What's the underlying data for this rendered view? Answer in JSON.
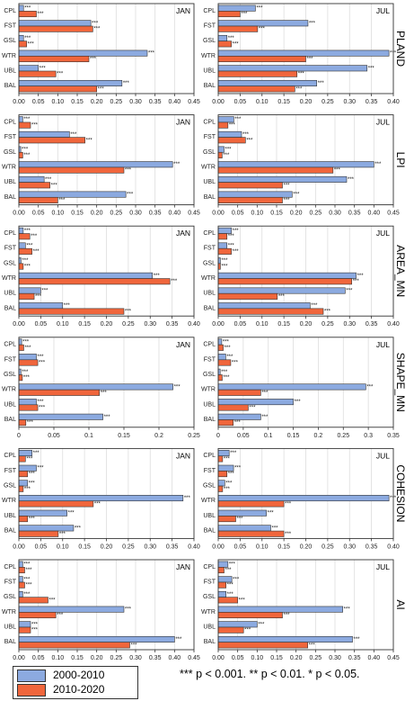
{
  "chart_data": {
    "type": "bar",
    "orientation": "horizontal",
    "categories": [
      "CPL",
      "FST",
      "GSL",
      "WTR",
      "UBL",
      "BAL"
    ],
    "series_names": [
      "2000-2010",
      "2010-2020"
    ],
    "colors": {
      "2000-2010": "#8caae0",
      "2010-2020": "#f0663c"
    },
    "significance_marker": "***",
    "grid": true,
    "rows": [
      {
        "metric": "PLAND",
        "panels": [
          {
            "month": "JAN",
            "xlim": [
              0,
              0.45
            ],
            "ticks": [
              "0.00",
              "0.05",
              "0.10",
              "0.15",
              "0.20",
              "0.25",
              "0.30",
              "0.35",
              "0.40",
              "0.45"
            ],
            "series": [
              {
                "name": "2000-2010",
                "values": [
                  0.012,
                  0.185,
                  0.012,
                  0.33,
                  0.05,
                  0.265
                ]
              },
              {
                "name": "2010-2020",
                "values": [
                  0.045,
                  0.19,
                  0.02,
                  0.18,
                  0.095,
                  0.2
                ]
              }
            ]
          },
          {
            "month": "JUL",
            "xlim": [
              0,
              0.4
            ],
            "ticks": [
              "0.00",
              "0.05",
              "0.10",
              "0.15",
              "0.20",
              "0.25",
              "0.30",
              "0.35",
              "0.40"
            ],
            "series": [
              {
                "name": "2000-2010",
                "values": [
                  0.085,
                  0.205,
                  0.02,
                  0.39,
                  0.34,
                  0.225
                ]
              },
              {
                "name": "2010-2020",
                "values": [
                  0.05,
                  0.09,
                  0.03,
                  0.2,
                  0.18,
                  0.175
                ]
              }
            ]
          }
        ]
      },
      {
        "metric": "LPI",
        "panels": [
          {
            "month": "JAN",
            "xlim": [
              0,
              0.45
            ],
            "ticks": [
              "0.00",
              "0.05",
              "0.10",
              "0.15",
              "0.20",
              "0.25",
              "0.30",
              "0.35",
              "0.40",
              "0.45"
            ],
            "series": [
              {
                "name": "2000-2010",
                "values": [
                  0.01,
                  0.13,
                  0.005,
                  0.395,
                  0.065,
                  0.275
                ]
              },
              {
                "name": "2010-2020",
                "values": [
                  0.03,
                  0.17,
                  0.01,
                  0.27,
                  0.08,
                  0.1
                ]
              }
            ]
          },
          {
            "month": "JUL",
            "xlim": [
              0,
              0.45
            ],
            "ticks": [
              "0.00",
              "0.05",
              "0.10",
              "0.15",
              "0.20",
              "0.25",
              "0.30",
              "0.35",
              "0.40",
              "0.45"
            ],
            "series": [
              {
                "name": "2000-2010",
                "values": [
                  0.04,
                  0.06,
                  0.015,
                  0.4,
                  0.33,
                  0.19
                ]
              },
              {
                "name": "2010-2020",
                "values": [
                  0.025,
                  0.07,
                  0.01,
                  0.295,
                  0.165,
                  0.165
                ]
              }
            ]
          }
        ]
      },
      {
        "metric": "AREA_MN",
        "panels": [
          {
            "month": "JAN",
            "xlim": [
              0,
              0.4
            ],
            "ticks": [
              "0.00",
              "0.05",
              "0.10",
              "0.15",
              "0.20",
              "0.25",
              "0.30",
              "0.35",
              "0.40"
            ],
            "series": [
              {
                "name": "2000-2010",
                "values": [
                  0.01,
                  0.015,
                  0.005,
                  0.305,
                  0.05,
                  0.1
                ]
              },
              {
                "name": "2010-2020",
                "values": [
                  0.025,
                  0.03,
                  0.01,
                  0.345,
                  0.035,
                  0.24
                ]
              }
            ]
          },
          {
            "month": "JUL",
            "xlim": [
              0,
              0.4
            ],
            "ticks": [
              "0.00",
              "0.05",
              "0.10",
              "0.15",
              "0.20",
              "0.25",
              "0.30",
              "0.35",
              "0.40"
            ],
            "series": [
              {
                "name": "2000-2010",
                "values": [
                  0.03,
                  0.02,
                  0.005,
                  0.315,
                  0.29,
                  0.21
                ]
              },
              {
                "name": "2010-2020",
                "values": [
                  0.02,
                  0.03,
                  0.005,
                  0.305,
                  0.135,
                  0.24
                ]
              }
            ]
          }
        ]
      },
      {
        "metric": "SHAPE_MN",
        "panels": [
          {
            "month": "JAN",
            "xlim": [
              0,
              0.25
            ],
            "ticks": [
              "0",
              "0.05",
              "0.1",
              "0.15",
              "0.2",
              "0.25"
            ],
            "series": [
              {
                "name": "2000-2010",
                "values": [
                  0.004,
                  0.025,
                  0.003,
                  0.22,
                  0.025,
                  0.12
                ]
              },
              {
                "name": "2010-2020",
                "values": [
                  0.007,
                  0.027,
                  0.005,
                  0.115,
                  0.027,
                  0.01
                ]
              }
            ]
          },
          {
            "month": "JUL",
            "xlim": [
              0,
              0.35
            ],
            "ticks": [
              "0",
              "0.05",
              "0.1",
              "0.15",
              "0.2",
              "0.25",
              "0.3",
              "0.35"
            ],
            "series": [
              {
                "name": "2000-2010",
                "values": [
                  0.007,
                  0.015,
                  0.004,
                  0.295,
                  0.15,
                  0.085
                ]
              },
              {
                "name": "2010-2020",
                "values": [
                  0.01,
                  0.025,
                  0.008,
                  0.085,
                  0.06,
                  0.03
                ]
              }
            ]
          }
        ]
      },
      {
        "metric": "COHESION",
        "panels": [
          {
            "month": "JAN",
            "xlim": [
              0,
              0.4
            ],
            "ticks": [
              "0.00",
              "0.05",
              "0.10",
              "0.15",
              "0.20",
              "0.25",
              "0.30",
              "0.35",
              "0.40"
            ],
            "series": [
              {
                "name": "2000-2010",
                "values": [
                  0.03,
                  0.04,
                  0.02,
                  0.375,
                  0.11,
                  0.125
                ]
              },
              {
                "name": "2010-2020",
                "values": [
                  0.015,
                  0.02,
                  0.01,
                  0.17,
                  0.02,
                  0.09
                ]
              }
            ]
          },
          {
            "month": "JUL",
            "xlim": [
              0,
              0.4
            ],
            "ticks": [
              "0.00",
              "0.05",
              "0.10",
              "0.15",
              "0.20",
              "0.25",
              "0.30",
              "0.35",
              "0.40"
            ],
            "series": [
              {
                "name": "2000-2010",
                "values": [
                  0.025,
                  0.035,
                  0.015,
                  0.39,
                  0.11,
                  0.12
                ]
              },
              {
                "name": "2010-2020",
                "values": [
                  0.01,
                  0.02,
                  0.01,
                  0.15,
                  0.04,
                  0.15
                ]
              }
            ]
          }
        ]
      },
      {
        "metric": "AI",
        "panels": [
          {
            "month": "JAN",
            "xlim": [
              0,
              0.45
            ],
            "ticks": [
              "0.00",
              "0.05",
              "0.10",
              "0.15",
              "0.20",
              "0.25",
              "0.30",
              "0.35",
              "0.40",
              "0.45"
            ],
            "series": [
              {
                "name": "2000-2010",
                "values": [
                  0.01,
                  0.01,
                  0.01,
                  0.27,
                  0.03,
                  0.4
                ]
              },
              {
                "name": "2010-2020",
                "values": [
                  0.015,
                  0.015,
                  0.075,
                  0.095,
                  0.03,
                  0.285
                ]
              }
            ]
          },
          {
            "month": "JUL",
            "xlim": [
              0,
              0.45
            ],
            "ticks": [
              "0.00",
              "0.05",
              "0.10",
              "0.15",
              "0.20",
              "0.25",
              "0.30",
              "0.35",
              "0.40",
              "0.45"
            ],
            "series": [
              {
                "name": "2000-2010",
                "values": [
                  0.025,
                  0.035,
                  0.02,
                  0.32,
                  0.1,
                  0.345
                ]
              },
              {
                "name": "2010-2020",
                "values": [
                  0.015,
                  0.02,
                  0.05,
                  0.165,
                  0.065,
                  0.23
                ]
              }
            ]
          }
        ]
      }
    ]
  },
  "legend": {
    "items": [
      {
        "label": "2000-2010",
        "color": "#8caae0"
      },
      {
        "label": "2010-2020",
        "color": "#f0663c"
      }
    ]
  },
  "footnote": "*** p < 0.001. ** p < 0.01. * p < 0.05."
}
